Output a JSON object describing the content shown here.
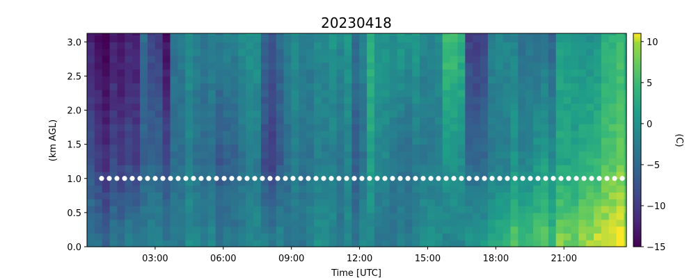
{
  "chart_data": {
    "type": "heatmap",
    "title": "20230418",
    "xlabel": "Time [UTC]",
    "ylabel": "(km AGL)",
    "xlim": [
      0,
      23.75
    ],
    "ylim": [
      0,
      3.125
    ],
    "x_ticks": [
      {
        "value": 3,
        "label": "03:00"
      },
      {
        "value": 6,
        "label": "06:00"
      },
      {
        "value": 9,
        "label": "09:00"
      },
      {
        "value": 12,
        "label": "12:00"
      },
      {
        "value": 15,
        "label": "15:00"
      },
      {
        "value": 18,
        "label": "18:00"
      },
      {
        "value": 21,
        "label": "21:00"
      }
    ],
    "y_ticks": [
      {
        "value": 0.0,
        "label": "0.0"
      },
      {
        "value": 0.5,
        "label": "0.5"
      },
      {
        "value": 1.0,
        "label": "1.0"
      },
      {
        "value": 1.5,
        "label": "1.5"
      },
      {
        "value": 2.0,
        "label": "2.0"
      },
      {
        "value": 2.5,
        "label": "2.5"
      },
      {
        "value": 3.0,
        "label": "3.0"
      }
    ],
    "colorbar": {
      "label": "(C)",
      "min": -15,
      "max": 11,
      "colormap": "viridis",
      "ticks": [
        {
          "value": 10,
          "label": "10"
        },
        {
          "value": 5,
          "label": "5"
        },
        {
          "value": 0,
          "label": "0"
        },
        {
          "value": -5,
          "label": "−5"
        },
        {
          "value": -10,
          "label": "−10"
        },
        {
          "value": -15,
          "label": "−15"
        }
      ]
    },
    "marker_line": {
      "y": 1.0,
      "color": "#ffffff",
      "style": "dotted"
    },
    "time_step_hours": 0.333,
    "height_step_km": 0.1,
    "columns": [
      {
        "t": 0.0,
        "top": -14,
        "mid": -9,
        "bottom": -4
      },
      {
        "t": 1.0,
        "top": -14,
        "mid": -10,
        "bottom": -4
      },
      {
        "t": 2.0,
        "top": -13,
        "mid": -10,
        "bottom": -3
      },
      {
        "t": 2.5,
        "top": -4,
        "mid": -5,
        "bottom": -2
      },
      {
        "t": 3.0,
        "top": -10,
        "mid": -6,
        "bottom": -2
      },
      {
        "t": 3.5,
        "top": -14,
        "mid": -8,
        "bottom": -3
      },
      {
        "t": 4.0,
        "top": -2,
        "mid": -3,
        "bottom": -2
      },
      {
        "t": 5.0,
        "top": -3,
        "mid": -5,
        "bottom": -2
      },
      {
        "t": 6.0,
        "top": -2,
        "mid": -6,
        "bottom": -3
      },
      {
        "t": 7.0,
        "top": 0,
        "mid": -3,
        "bottom": -2
      },
      {
        "t": 8.0,
        "top": -7,
        "mid": -9,
        "bottom": -2
      },
      {
        "t": 9.0,
        "top": -1,
        "mid": -3,
        "bottom": -3
      },
      {
        "t": 10.0,
        "top": -2,
        "mid": -3,
        "bottom": -1
      },
      {
        "t": 11.0,
        "top": 0,
        "mid": -3,
        "bottom": -2
      },
      {
        "t": 12.0,
        "top": -4,
        "mid": -6,
        "bottom": -3
      },
      {
        "t": 12.5,
        "top": 4,
        "mid": 2,
        "bottom": -2
      },
      {
        "t": 13.0,
        "top": 1,
        "mid": -1,
        "bottom": -3
      },
      {
        "t": 14.0,
        "top": 1,
        "mid": -4,
        "bottom": -2
      },
      {
        "t": 15.0,
        "top": -2,
        "mid": -3,
        "bottom": 0
      },
      {
        "t": 16.0,
        "top": 7,
        "mid": 1,
        "bottom": -1
      },
      {
        "t": 17.0,
        "top": -10,
        "mid": -5,
        "bottom": 1
      },
      {
        "t": 18.0,
        "top": -1,
        "mid": -2,
        "bottom": 4
      },
      {
        "t": 19.0,
        "top": -3,
        "mid": -1,
        "bottom": 6
      },
      {
        "t": 20.0,
        "top": -5,
        "mid": 0,
        "bottom": 6
      },
      {
        "t": 21.0,
        "top": 1,
        "mid": 2,
        "bottom": 8
      },
      {
        "t": 22.0,
        "top": -1,
        "mid": 3,
        "bottom": 9
      },
      {
        "t": 23.0,
        "top": 3,
        "mid": 6,
        "bottom": 10
      }
    ]
  }
}
